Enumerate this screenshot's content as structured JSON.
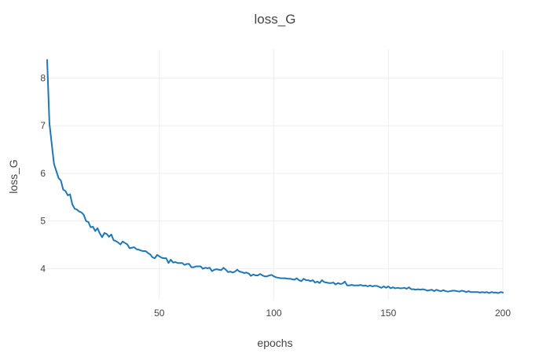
{
  "chart_data": {
    "type": "line",
    "title": "loss_G",
    "xlabel": "epochs",
    "ylabel": "loss_G",
    "xlim": [
      1,
      200
    ],
    "ylim": [
      3.35,
      8.6
    ],
    "x_ticks": [
      50,
      100,
      150,
      200
    ],
    "y_ticks": [
      4,
      5,
      6,
      7,
      8
    ],
    "grid": true,
    "legend": "none",
    "series": [
      {
        "color": "#1f77b4",
        "x": [
          1,
          2,
          3,
          4,
          5,
          6,
          7,
          8,
          9,
          10,
          11,
          12,
          13,
          14,
          15,
          16,
          17,
          18,
          19,
          20,
          21,
          22,
          23,
          24,
          25,
          26,
          27,
          28,
          29,
          30,
          31,
          32,
          33,
          34,
          35,
          36,
          37,
          38,
          39,
          40,
          41,
          42,
          43,
          44,
          45,
          46,
          47,
          48,
          49,
          50,
          51,
          52,
          53,
          54,
          55,
          56,
          57,
          58,
          59,
          60,
          61,
          62,
          63,
          64,
          65,
          66,
          67,
          68,
          69,
          70,
          71,
          72,
          73,
          74,
          75,
          76,
          77,
          78,
          79,
          80,
          81,
          82,
          83,
          84,
          85,
          86,
          87,
          88,
          89,
          90,
          91,
          92,
          93,
          94,
          95,
          96,
          97,
          98,
          99,
          100,
          101,
          102,
          103,
          104,
          105,
          106,
          107,
          108,
          109,
          110,
          111,
          112,
          113,
          114,
          115,
          116,
          117,
          118,
          119,
          120,
          121,
          122,
          123,
          124,
          125,
          126,
          127,
          128,
          129,
          130,
          131,
          132,
          133,
          134,
          135,
          136,
          137,
          138,
          139,
          140,
          141,
          142,
          143,
          144,
          145,
          146,
          147,
          148,
          149,
          150,
          151,
          152,
          153,
          154,
          155,
          156,
          157,
          158,
          159,
          160,
          161,
          162,
          163,
          164,
          165,
          166,
          167,
          168,
          169,
          170,
          171,
          172,
          173,
          174,
          175,
          176,
          177,
          178,
          179,
          180,
          181,
          182,
          183,
          184,
          185,
          186,
          187,
          188,
          189,
          190,
          191,
          192,
          193,
          194,
          195,
          196,
          197,
          198,
          199,
          200
        ],
        "y": [
          8.38,
          7.05,
          6.62,
          6.2,
          6.05,
          5.9,
          5.85,
          5.66,
          5.63,
          5.54,
          5.56,
          5.35,
          5.26,
          5.24,
          5.2,
          5.18,
          5.13,
          5.0,
          4.98,
          4.87,
          4.88,
          4.79,
          4.85,
          4.74,
          4.66,
          4.75,
          4.73,
          4.67,
          4.72,
          4.6,
          4.58,
          4.55,
          4.51,
          4.57,
          4.54,
          4.51,
          4.43,
          4.44,
          4.45,
          4.41,
          4.4,
          4.38,
          4.37,
          4.37,
          4.33,
          4.3,
          4.24,
          4.22,
          4.29,
          4.26,
          4.23,
          4.22,
          4.22,
          4.12,
          4.19,
          4.13,
          4.14,
          4.12,
          4.12,
          4.12,
          4.08,
          4.1,
          4.1,
          4.03,
          4.03,
          4.05,
          4.05,
          4.05,
          4.0,
          4.02,
          4.01,
          4.02,
          3.95,
          3.98,
          3.99,
          3.98,
          3.97,
          4.02,
          3.98,
          3.93,
          3.94,
          3.92,
          3.94,
          3.98,
          3.94,
          3.93,
          3.91,
          3.92,
          3.9,
          3.85,
          3.88,
          3.86,
          3.86,
          3.89,
          3.86,
          3.84,
          3.84,
          3.86,
          3.87,
          3.84,
          3.82,
          3.81,
          3.8,
          3.8,
          3.8,
          3.79,
          3.79,
          3.78,
          3.77,
          3.8,
          3.76,
          3.74,
          3.79,
          3.76,
          3.76,
          3.74,
          3.76,
          3.71,
          3.73,
          3.7,
          3.76,
          3.72,
          3.71,
          3.7,
          3.7,
          3.71,
          3.67,
          3.7,
          3.68,
          3.69,
          3.73,
          3.65,
          3.65,
          3.66,
          3.65,
          3.65,
          3.65,
          3.66,
          3.64,
          3.65,
          3.63,
          3.65,
          3.63,
          3.64,
          3.64,
          3.62,
          3.6,
          3.63,
          3.6,
          3.63,
          3.59,
          3.61,
          3.59,
          3.6,
          3.59,
          3.59,
          3.6,
          3.58,
          3.61,
          3.57,
          3.57,
          3.56,
          3.57,
          3.56,
          3.57,
          3.56,
          3.54,
          3.55,
          3.56,
          3.53,
          3.56,
          3.54,
          3.53,
          3.55,
          3.53,
          3.52,
          3.53,
          3.54,
          3.54,
          3.53,
          3.52,
          3.54,
          3.53,
          3.51,
          3.53,
          3.51,
          3.51,
          3.51,
          3.51,
          3.5,
          3.51,
          3.5,
          3.51,
          3.49,
          3.51,
          3.5,
          3.5,
          3.49,
          3.51,
          3.5
        ]
      }
    ]
  }
}
